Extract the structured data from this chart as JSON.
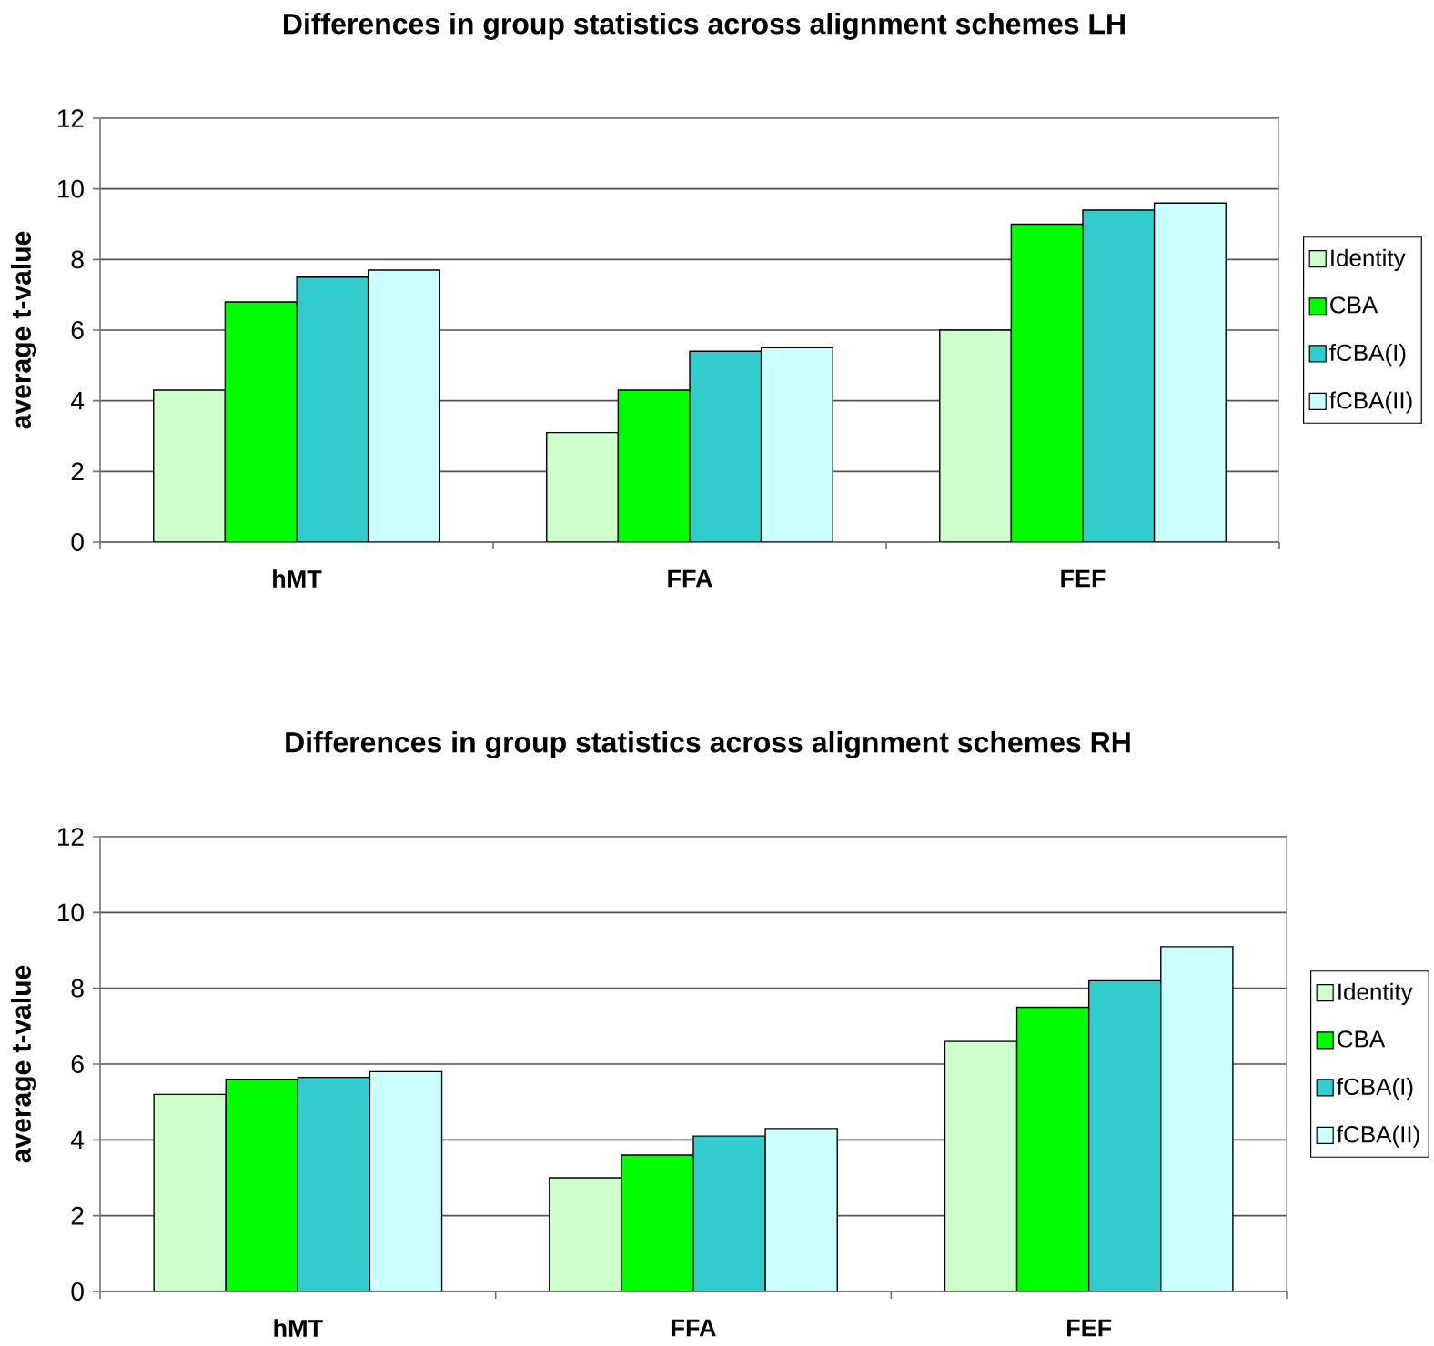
{
  "chart_data": [
    {
      "type": "bar",
      "title": "Differences in group statistics across alignment schemes LH",
      "ylabel": "average t-value",
      "categories": [
        "hMT",
        "FFA",
        "FEF"
      ],
      "series": [
        {
          "name": "Identity",
          "color": "#ccffcc",
          "values": [
            4.3,
            3.1,
            6.0
          ]
        },
        {
          "name": "CBA",
          "color": "#00ff00",
          "values": [
            6.8,
            4.3,
            9.0
          ]
        },
        {
          "name": "fCBA(I)",
          "color": "#33cccc",
          "values": [
            7.5,
            5.4,
            9.4
          ]
        },
        {
          "name": "fCBA(II)",
          "color": "#ccffff",
          "values": [
            7.7,
            5.5,
            9.6
          ]
        }
      ],
      "ylim": [
        0,
        12
      ],
      "yticks": [
        0,
        2,
        4,
        6,
        8,
        10,
        12
      ],
      "grid": "y",
      "legend": "right"
    },
    {
      "type": "bar",
      "title": "Differences in group statistics across alignment schemes RH",
      "ylabel": "average t-value",
      "categories": [
        "hMT",
        "FFA",
        "FEF"
      ],
      "series": [
        {
          "name": "Identity",
          "color": "#ccffcc",
          "values": [
            5.2,
            3.0,
            6.6
          ]
        },
        {
          "name": "CBA",
          "color": "#00ff00",
          "values": [
            5.6,
            3.6,
            7.5
          ]
        },
        {
          "name": "fCBA(I)",
          "color": "#33cccc",
          "values": [
            5.65,
            4.1,
            8.2
          ]
        },
        {
          "name": "fCBA(II)",
          "color": "#ccffff",
          "values": [
            5.8,
            4.3,
            9.1
          ]
        }
      ],
      "ylim": [
        0,
        12
      ],
      "yticks": [
        0,
        2,
        4,
        6,
        8,
        10,
        12
      ],
      "grid": "y",
      "legend": "right"
    }
  ]
}
